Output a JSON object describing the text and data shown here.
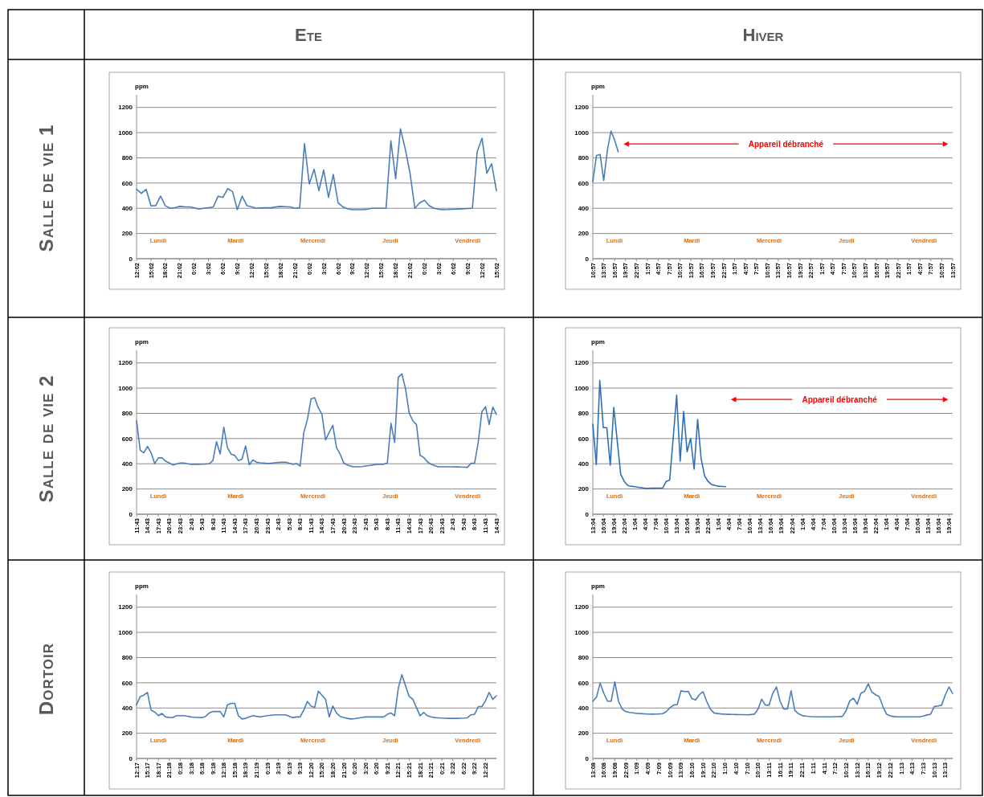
{
  "chart_data": [
    {
      "type": "other",
      "annotations": [
        "Ete",
        "Hiver",
        "Salle de vie 1",
        "Salle de vie 2",
        "Dortoir"
      ]
    },
    {
      "type": "line",
      "ylabel": "ppm",
      "ylim": [
        0,
        1300
      ],
      "yticks": [
        0,
        200,
        400,
        600,
        800,
        1000,
        1200
      ],
      "grid": "y",
      "annotations": [
        "Lundi",
        "Mardi",
        "Mercredi",
        "Jeudi",
        "Vendredi"
      ],
      "categories": [
        "12:02",
        null,
        null,
        "15:02",
        null,
        null,
        "18:02",
        null,
        null,
        "21:02",
        null,
        null,
        "0:02",
        null,
        null,
        "3:02",
        null,
        null,
        "6:02",
        null,
        null,
        "9:02",
        null,
        null,
        "12:02",
        null,
        null,
        "15:02",
        null,
        null,
        "18:02",
        null,
        null,
        "21:02",
        null,
        null,
        "0:02",
        null,
        null,
        "3:02",
        null,
        null,
        "6:02",
        null,
        null,
        "9:02",
        null,
        null,
        "12:02",
        null,
        null,
        "15:02",
        null,
        null,
        "18:02",
        null,
        null,
        "21:02",
        null,
        null,
        "0:02",
        null,
        null,
        "3:02",
        null,
        null,
        "6:02",
        null,
        null,
        "9:02",
        null,
        null,
        "12:02",
        null,
        null,
        "15:02"
      ],
      "series": [
        {
          "color": "#4a7ebb",
          "values": [
            550,
            518,
            550,
            420,
            421,
            496,
            420,
            400,
            405,
            415,
            412,
            411,
            405,
            394,
            400,
            405,
            411,
            496,
            486,
            556,
            533,
            389,
            496,
            421,
            411,
            400,
            402,
            404,
            404,
            410,
            415,
            413,
            411,
            400,
            404,
            913,
            593,
            710,
            539,
            704,
            486,
            668,
            443,
            411,
            395,
            389,
            389,
            389,
            392,
            400,
            400,
            400,
            400,
            935,
            635,
            1031,
            871,
            678,
            400,
            443,
            464,
            421,
            400,
            392,
            389,
            390,
            392,
            394,
            396,
            398,
            400,
            849,
            956,
            678,
            753,
            539
          ]
        }
      ]
    },
    {
      "type": "line",
      "ylabel": "ppm",
      "ylim": [
        0,
        1300
      ],
      "yticks": [
        0,
        200,
        400,
        600,
        800,
        1000,
        1200
      ],
      "grid": "y",
      "annotations": [
        "Lundi",
        "Mardi",
        "Mercredi",
        "Jeudi",
        "Vendredi",
        "Appareil débranché"
      ],
      "categories": [
        "10:57",
        null,
        null,
        "13:57",
        null,
        null,
        "16:57",
        null,
        null,
        "19:57",
        null,
        null,
        "22:57",
        null,
        null,
        "1:57",
        null,
        null,
        "4:57",
        null,
        null,
        "7:57",
        null,
        null,
        "10:57",
        null,
        null,
        "13:57",
        null,
        null,
        "16:57",
        null,
        null,
        "19:57",
        null,
        null,
        "22:57",
        null,
        null,
        "1:57",
        null,
        null,
        "4:57",
        null,
        null,
        "7:57",
        null,
        null,
        "10:57",
        null,
        null,
        "13:57",
        null,
        null,
        "16:57",
        null,
        null,
        "19:57",
        null,
        null,
        "22:57",
        null,
        null,
        "1:57",
        null,
        null,
        "4:57",
        null,
        null,
        "7:57",
        null,
        null,
        "10:57",
        null,
        null,
        "13:57",
        null,
        null,
        "16:57",
        null,
        null,
        "19:57",
        null,
        null,
        "22:57",
        null,
        null,
        "1:57",
        null,
        null,
        "4:57",
        null,
        null,
        "7:57",
        null,
        null,
        "10:57",
        null,
        null,
        "13:57"
      ],
      "series": [
        {
          "color": "#4a7ebb",
          "values": [
            609,
            817,
            827,
            620,
            858,
            1013,
            941,
            848,
            null,
            null,
            null,
            null,
            null,
            null,
            null,
            null,
            null,
            null,
            null,
            null,
            null,
            null,
            null,
            null,
            null,
            null,
            null,
            null,
            null,
            null,
            null,
            null,
            null,
            null,
            null,
            null,
            null,
            null,
            null,
            null,
            null,
            null,
            null,
            null,
            null,
            null,
            null,
            null,
            null,
            null,
            null,
            null,
            null,
            null,
            null,
            null,
            null,
            null,
            null,
            null,
            null,
            null,
            null,
            null,
            null,
            null,
            null,
            null,
            null,
            null,
            null,
            null,
            null,
            null,
            null,
            null,
            null,
            null,
            null,
            null,
            null,
            null,
            null,
            null,
            null,
            null,
            null,
            null,
            null,
            null,
            null,
            null,
            null,
            null,
            null,
            null,
            null,
            null,
            null,
            null
          ]
        }
      ]
    },
    {
      "type": "line",
      "ylabel": "ppm",
      "ylim": [
        0,
        1300
      ],
      "yticks": [
        0,
        200,
        400,
        600,
        800,
        1000,
        1200
      ],
      "grid": "y",
      "annotations": [
        "Lundi",
        "Mardi",
        "Mercredi",
        "Jeudi",
        "Vendredi"
      ],
      "categories": [
        "11:43",
        null,
        null,
        "14:43",
        null,
        null,
        "17:43",
        null,
        null,
        "20:43",
        null,
        null,
        "23:43",
        null,
        null,
        "2:43",
        null,
        null,
        "5:43",
        null,
        null,
        "8:43",
        null,
        null,
        "11:43",
        null,
        null,
        "14:43",
        null,
        null,
        "17:43",
        null,
        null,
        "20:43",
        null,
        null,
        "23:43",
        null,
        null,
        "2:43",
        null,
        null,
        "5:43",
        null,
        null,
        "8:43",
        null,
        null,
        "11:43",
        null,
        null,
        "14:43",
        null,
        null,
        "17:43",
        null,
        null,
        "20:43",
        null,
        null,
        "23:43",
        null,
        null,
        "2:43",
        null,
        null,
        "5:43",
        null,
        null,
        "8:43",
        null,
        null,
        "11:43",
        null,
        null,
        "14:43",
        null,
        null,
        "17:43",
        null,
        null,
        "20:43",
        null,
        null,
        "23:43",
        null,
        null,
        "2:43",
        null,
        null,
        "5:43",
        null,
        null,
        "8:43",
        null,
        null,
        "11:43",
        null,
        null,
        "14:43"
      ],
      "series": [
        {
          "color": "#4a7ebb",
          "values": [
            741,
            508,
            487,
            538,
            487,
            402,
            447,
            447,
            420,
            406,
            390,
            398,
            406,
            406,
            400,
            396,
            396,
            396,
            397,
            398,
            400,
            426,
            575,
            477,
            690,
            528,
            477,
            467,
            426,
            437,
            542,
            392,
            430,
            412,
            408,
            406,
            402,
            404,
            408,
            410,
            412,
            412,
            404,
            396,
            402,
            382,
            646,
            751,
            914,
            924,
            843,
            792,
            589,
            650,
            705,
            528,
            477,
            406,
            390,
            380,
            376,
            376,
            378,
            382,
            386,
            390,
            396,
            396,
            396,
            406,
            721,
            569,
            1086,
            1113,
            995,
            802,
            741,
            711,
            467,
            450,
            416,
            396,
            386,
            376,
            376,
            376,
            376,
            376,
            375,
            374,
            373,
            372,
            402,
            406,
            569,
            812,
            853,
            711,
            849,
            792
          ]
        }
      ]
    },
    {
      "type": "line",
      "ylabel": "ppm",
      "ylim": [
        0,
        1300
      ],
      "yticks": [
        0,
        200,
        400,
        600,
        800,
        1000,
        1200
      ],
      "grid": "y",
      "annotations": [
        "Lundi",
        "Mardi",
        "Mercredi",
        "Jeudi",
        "Vendredi",
        "Appareil débranché"
      ],
      "categories": [
        "13:04",
        null,
        null,
        "16:04",
        null,
        null,
        "19:04",
        null,
        null,
        "22:04",
        null,
        null,
        "1:04",
        null,
        null,
        "4:04",
        null,
        null,
        "7:04",
        null,
        null,
        "10:04",
        null,
        null,
        "13:04",
        null,
        null,
        "16:04",
        null,
        null,
        "19:04",
        null,
        null,
        "22:04",
        null,
        null,
        "1:04",
        null,
        null,
        "4:04",
        null,
        null,
        "7:04",
        null,
        null,
        "10:04",
        null,
        null,
        "13:04",
        null,
        null,
        "16:04",
        null,
        null,
        "19:04",
        null,
        null,
        "22:04",
        null,
        null,
        "1:04",
        null,
        null,
        "4:04",
        null,
        null,
        "7:04",
        null,
        null,
        "10:04",
        null,
        null,
        "13:04",
        null,
        null,
        "16:04",
        null,
        null,
        "19:04",
        null,
        null,
        "22:04",
        null,
        null,
        "1:04",
        null,
        null,
        "4:04",
        null,
        null,
        "7:04",
        null,
        null,
        "10:04",
        null,
        null,
        "13:04",
        null,
        null,
        "16:04",
        null,
        null,
        "19:04",
        null
      ],
      "series": [
        {
          "color": "#2f6fba",
          "values": [
            713,
            393,
            1061,
            687,
            687,
            389,
            848,
            581,
            314,
            260,
            228,
            222,
            218,
            214,
            210,
            205,
            205,
            206,
            206,
            207,
            207,
            260,
            271,
            602,
            944,
            421,
            816,
            495,
            602,
            357,
            752,
            442,
            303,
            260,
            235,
            228,
            222,
            220,
            218,
            null,
            null,
            null,
            null,
            null,
            null,
            null,
            null,
            null,
            null,
            null,
            null,
            null,
            null,
            null,
            null,
            null,
            null,
            null,
            null,
            null,
            null,
            null,
            null,
            null,
            null,
            null,
            null,
            null,
            null,
            null,
            null,
            null,
            null,
            null,
            null,
            null,
            null,
            null,
            null,
            null,
            null,
            null,
            null,
            null,
            null,
            null,
            null,
            null,
            null,
            null,
            null,
            null,
            null,
            null,
            null,
            null,
            null,
            null,
            null,
            null,
            null,
            null,
            null,
            null
          ]
        }
      ]
    },
    {
      "type": "line",
      "ylabel": "ppm",
      "ylim": [
        0,
        1300
      ],
      "yticks": [
        0,
        200,
        400,
        600,
        800,
        1000,
        1200
      ],
      "grid": "y",
      "annotations": [
        "Lundi",
        "Mardi",
        "Mercredi",
        "Jeudi",
        "Vendredi"
      ],
      "categories": [
        "12:17",
        null,
        null,
        "15:17",
        null,
        null,
        "18:17",
        null,
        null,
        "21:18",
        null,
        null,
        "0:18",
        null,
        null,
        "3:18",
        null,
        null,
        "6:18",
        null,
        null,
        "9:18",
        null,
        null,
        "12:18",
        null,
        null,
        "15:18",
        null,
        null,
        "18:19",
        null,
        null,
        "21:19",
        null,
        null,
        "0:19",
        null,
        null,
        "3:19",
        null,
        null,
        "6:19",
        null,
        null,
        "9:19",
        null,
        null,
        "12:20",
        null,
        null,
        "15:20",
        null,
        null,
        "18:20",
        null,
        null,
        "21:20",
        null,
        null,
        "0:20",
        null,
        null,
        "3:20",
        null,
        null,
        "6:20",
        null,
        null,
        "9:21",
        null,
        null,
        "12:21",
        null,
        null,
        "15:21",
        null,
        null,
        "18:21",
        null,
        null,
        "21:21",
        null,
        null,
        "0:21",
        null,
        null,
        "3:22",
        null,
        null,
        "6:22",
        null,
        null,
        "9:22",
        null,
        null,
        "12:22",
        null,
        null,
        null
      ],
      "series": [
        {
          "color": "#4a7ebb",
          "values": [
            426,
            491,
            502,
            523,
            383,
            368,
            339,
            357,
            329,
            326,
            324,
            339,
            339,
            339,
            335,
            329,
            327,
            325,
            324,
            333,
            361,
            372,
            372,
            372,
            329,
            426,
            437,
            437,
            339,
            313,
            318,
            330,
            339,
            334,
            330,
            335,
            339,
            343,
            346,
            346,
            346,
            346,
            335,
            324,
            329,
            329,
            383,
            452,
            415,
            404,
            534,
            502,
            469,
            329,
            415,
            361,
            333,
            325,
            318,
            313,
            315,
            320,
            325,
            329,
            329,
            329,
            329,
            329,
            329,
            350,
            361,
            339,
            556,
            664,
            577,
            491,
            470,
            404,
            339,
            365,
            339,
            330,
            324,
            322,
            320,
            319,
            318,
            318,
            318,
            319,
            320,
            322,
            346,
            350,
            411,
            411,
            458,
            523,
            469,
            497
          ]
        }
      ]
    },
    {
      "type": "line",
      "ylabel": "ppm",
      "ylim": [
        0,
        1300
      ],
      "yticks": [
        0,
        200,
        400,
        600,
        800,
        1000,
        1200
      ],
      "grid": "y",
      "annotations": [
        "Lundi",
        "Mardi",
        "Mercredi",
        "Jeudi",
        "Vendredi"
      ],
      "categories": [
        "13:08",
        null,
        null,
        "16:08",
        null,
        null,
        "19:08",
        null,
        null,
        "22:09",
        null,
        null,
        "1:09",
        null,
        null,
        "4:09",
        null,
        null,
        "7:09",
        null,
        null,
        "10:09",
        null,
        null,
        "13:09",
        null,
        null,
        "16:10",
        null,
        null,
        "19:10",
        null,
        null,
        "22:10",
        null,
        null,
        "1:10",
        null,
        null,
        "4:10",
        null,
        null,
        "7:10",
        null,
        null,
        "10:10",
        null,
        null,
        "13:11",
        null,
        null,
        "16:11",
        null,
        null,
        "19:11",
        null,
        null,
        "22:11",
        null,
        null,
        "1:11",
        null,
        null,
        "4:11",
        null,
        null,
        "7:12",
        null,
        null,
        "10:12",
        null,
        null,
        "13:12",
        null,
        null,
        "16:12",
        null,
        null,
        "19:12",
        null,
        null,
        "22:12",
        null,
        null,
        "1:13",
        null,
        null,
        "4:13",
        null,
        null,
        "7:13",
        null,
        null,
        "10:13",
        null,
        null,
        "13:13",
        null,
        null
      ],
      "series": [
        {
          "color": "#4a7ebb",
          "values": [
            454,
            485,
            598,
            516,
            454,
            454,
            608,
            454,
            392,
            371,
            365,
            362,
            357,
            356,
            354,
            352,
            351,
            352,
            353,
            355,
            371,
            402,
            423,
            429,
            536,
            530,
            532,
            474,
            464,
            505,
            530,
            454,
            392,
            361,
            356,
            353,
            351,
            350,
            349,
            348,
            347,
            347,
            346,
            348,
            351,
            392,
            470,
            423,
            423,
            516,
            567,
            454,
            392,
            392,
            536,
            381,
            355,
            340,
            336,
            333,
            331,
            330,
            330,
            330,
            330,
            330,
            331,
            332,
            334,
            381,
            458,
            478,
            429,
            516,
            532,
            592,
            526,
            505,
            491,
            412,
            351,
            338,
            332,
            330,
            330,
            330,
            330,
            330,
            330,
            330,
            336,
            345,
            351,
            412,
            416,
            423,
            505,
            567,
            516
          ]
        }
      ]
    }
  ]
}
